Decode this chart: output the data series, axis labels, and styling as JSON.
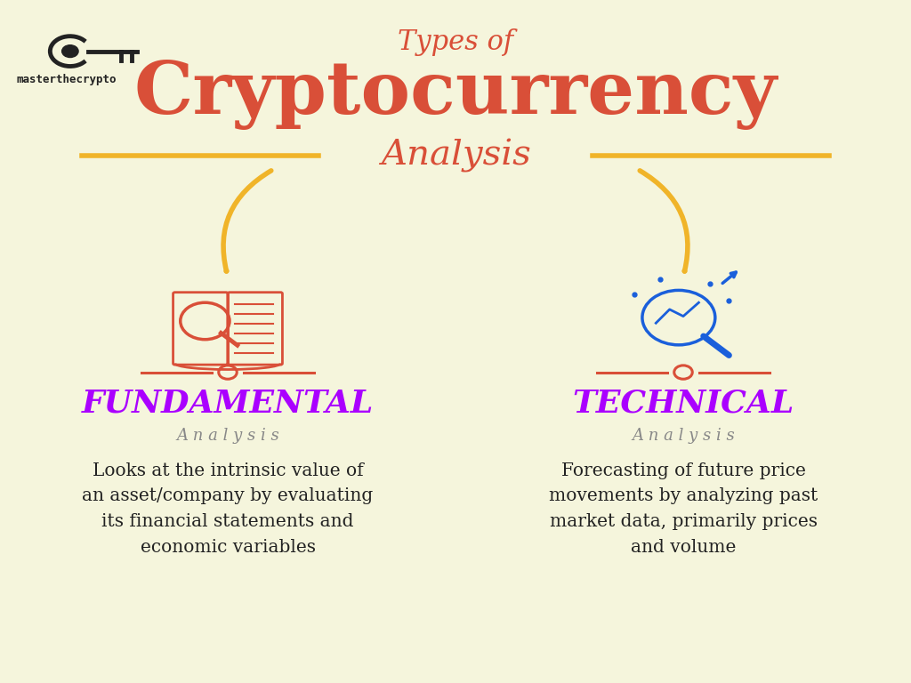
{
  "bg_color": "#f5f5dc",
  "title_line1": "Types of",
  "title_line2": "Cryptocurrency",
  "title_line3": "Analysis",
  "title_color": "#d94f38",
  "arrow_color": "#f0b429",
  "left_label": "FUNDAMENTAL",
  "right_label": "TECHNICAL",
  "label_color": "#aa00ff",
  "sublabel": "A n a l y s i s",
  "sublabel_color": "#888888",
  "left_desc": "Looks at the intrinsic value of\nan asset/company by evaluating\nits financial statements and\neconomic variables",
  "right_desc": "Forecasting of future price\nmovements by analyzing past\nmarket data, primarily prices\nand volume",
  "desc_color": "#222222",
  "logo_text": "masterthecrypto",
  "logo_color": "#222222",
  "divider_color": "#d94f38",
  "icon_left_color": "#d94f38",
  "icon_right_color": "#1a5fdb"
}
